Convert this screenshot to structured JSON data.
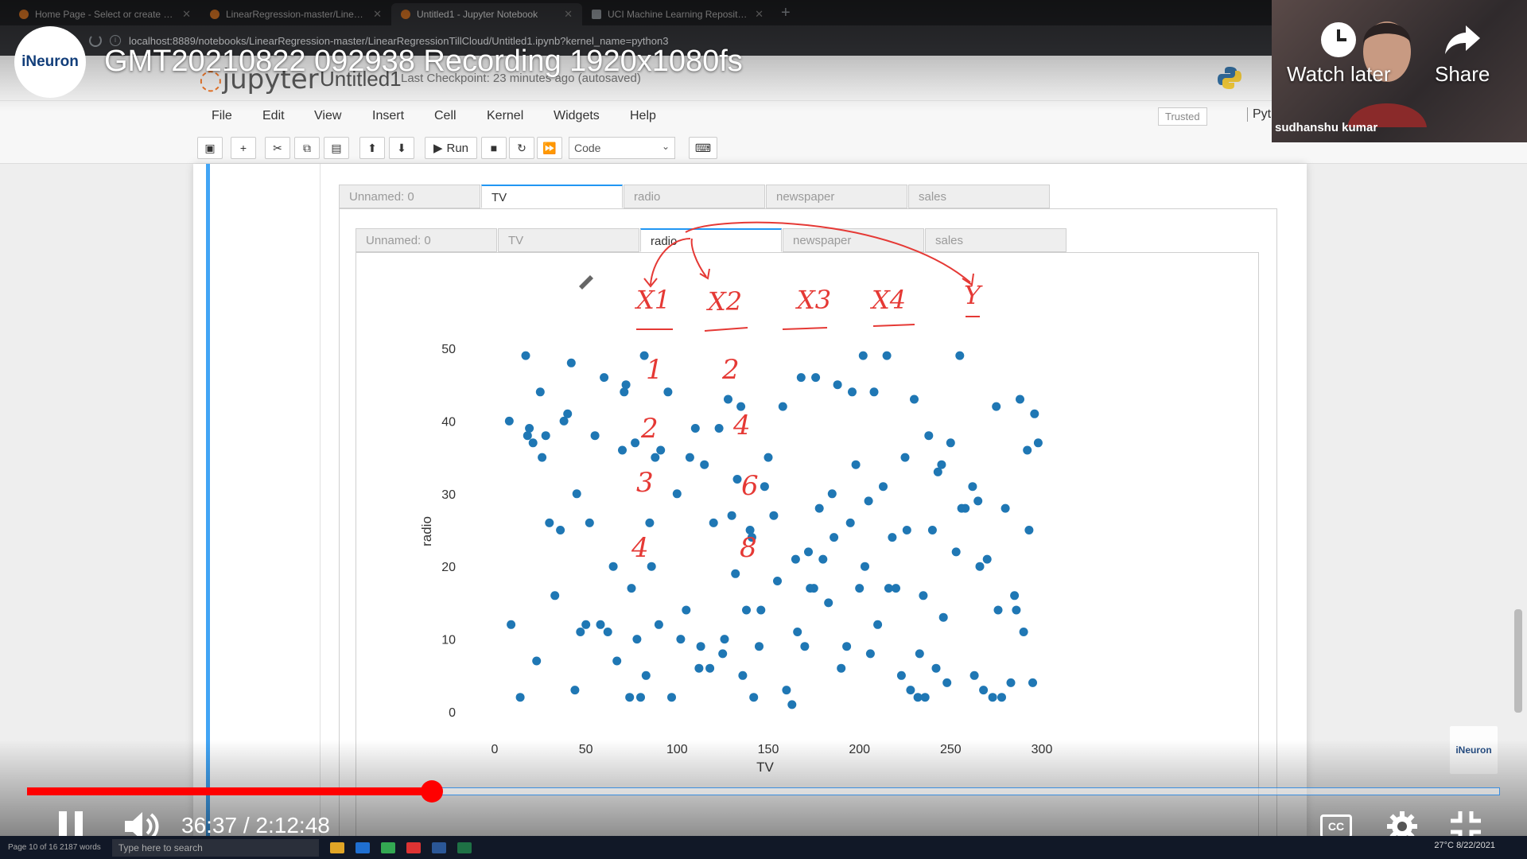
{
  "browser": {
    "tabs": [
      {
        "label": "Home Page - Select or create a...",
        "active": false
      },
      {
        "label": "LinearRegression-master/Linea...",
        "active": false
      },
      {
        "label": "Untitled1 - Jupyter Notebook",
        "active": true
      },
      {
        "label": "UCI Machine Learning Repositor...",
        "active": false
      }
    ],
    "url": "localhost:8889/notebooks/LinearRegression-master/LinearRegressionTillCloud/Untitled1.ipynb?kernel_name=python3"
  },
  "jupyter": {
    "logo_text": "jupyter",
    "notebook_title": "Untitled1",
    "checkpoint": "Last Checkpoint: 23 minutes ago  (autosaved)",
    "menu": [
      "File",
      "Edit",
      "View",
      "Insert",
      "Cell",
      "Kernel",
      "Widgets",
      "Help"
    ],
    "trusted": "Trusted",
    "kernel": "Pyt",
    "toolbar": {
      "run_label": "Run",
      "cell_type": "Code"
    }
  },
  "output": {
    "outer_tabs": [
      "Unnamed: 0",
      "TV",
      "radio",
      "newspaper",
      "sales"
    ],
    "outer_active": 1,
    "inner_tabs": [
      "Unnamed: 0",
      "TV",
      "radio",
      "newspaper",
      "sales"
    ],
    "inner_active": 2
  },
  "chart_data": {
    "type": "scatter",
    "xlabel": "TV",
    "ylabel": "radio",
    "xlim": [
      0,
      300
    ],
    "ylim": [
      0,
      50
    ],
    "xticks": [
      0,
      50,
      100,
      150,
      200,
      250,
      300
    ],
    "yticks": [
      0,
      10,
      20,
      30,
      40,
      50
    ],
    "point_color": "#1f77b4",
    "x": [
      8,
      17,
      19,
      21,
      25,
      28,
      30,
      38,
      40,
      42,
      45,
      50,
      55,
      60,
      65,
      70,
      72,
      75,
      78,
      80,
      82,
      85,
      88,
      90,
      95,
      100,
      105,
      110,
      112,
      115,
      120,
      125,
      128,
      130,
      132,
      135,
      138,
      140,
      142,
      145,
      148,
      150,
      155,
      160,
      165,
      168,
      170,
      172,
      175,
      178,
      180,
      185,
      188,
      190,
      195,
      198,
      200,
      202,
      205,
      208,
      210,
      215,
      218,
      220,
      225,
      228,
      230,
      232,
      235,
      238,
      240,
      242,
      245,
      248,
      250,
      255,
      258,
      262,
      265,
      268,
      270,
      275,
      278,
      280,
      285,
      288,
      290,
      292,
      295,
      298,
      9,
      14,
      18,
      23,
      26,
      33,
      36,
      44,
      47,
      52,
      58,
      62,
      67,
      71,
      74,
      77,
      83,
      86,
      91,
      97,
      102,
      107,
      113,
      118,
      123,
      126,
      133,
      136,
      141,
      146,
      153,
      158,
      163,
      166,
      173,
      176,
      183,
      186,
      193,
      196,
      203,
      206,
      213,
      216,
      223,
      226,
      233,
      236,
      243,
      246,
      253,
      256,
      263,
      266,
      273,
      276,
      283,
      286,
      293,
      296
    ],
    "y": [
      40,
      49,
      39,
      37,
      44,
      38,
      26,
      40,
      41,
      48,
      30,
      12,
      38,
      46,
      20,
      36,
      45,
      17,
      10,
      2,
      49,
      26,
      35,
      12,
      44,
      30,
      14,
      39,
      6,
      34,
      26,
      8,
      43,
      27,
      19,
      42,
      14,
      25,
      2,
      9,
      31,
      35,
      18,
      3,
      21,
      46,
      9,
      22,
      17,
      28,
      21,
      30,
      45,
      6,
      26,
      34,
      17,
      49,
      29,
      44,
      12,
      49,
      24,
      17,
      35,
      3,
      43,
      2,
      16,
      38,
      25,
      6,
      34,
      4,
      37,
      49,
      28,
      31,
      29,
      3,
      21,
      42,
      2,
      28,
      16,
      43,
      11,
      36,
      4,
      37,
      12,
      2,
      38,
      7,
      35,
      16,
      25,
      3,
      11,
      26,
      12,
      11,
      7,
      44,
      2,
      37,
      5,
      20,
      36,
      2,
      10,
      35,
      9,
      6,
      39,
      10,
      32,
      5,
      24,
      14,
      27,
      42,
      1,
      11,
      17,
      46,
      15,
      24,
      9,
      44,
      20,
      8,
      31,
      17,
      5,
      25,
      8,
      2,
      33,
      13,
      22,
      28,
      5,
      20,
      2,
      14,
      4,
      14,
      25,
      41
    ]
  },
  "overlay": {
    "channel": "iNeuron",
    "video_title": "GMT20210822 092938 Recording 1920x1080fs",
    "watch_later": "Watch later",
    "share": "Share",
    "webcam_name": "sudhanshu kumar",
    "watermark": "iNeuron",
    "time_current": "36:37",
    "time_total": "2:12:48",
    "progress_fraction": 0.275,
    "cc": "CC",
    "annotation_labels": [
      "X1",
      "X2",
      "X3",
      "X4",
      "Y"
    ],
    "annotation_numbers": [
      "1",
      "2",
      "2",
      "4",
      "3",
      "6",
      "4",
      "8"
    ],
    "annotation_color": "#e53935"
  },
  "taskbar": {
    "status_left": "Page 10 of 16   2187 words",
    "search_placeholder": "Type here to search",
    "temp": "27°C",
    "date": "8/22/2021"
  }
}
